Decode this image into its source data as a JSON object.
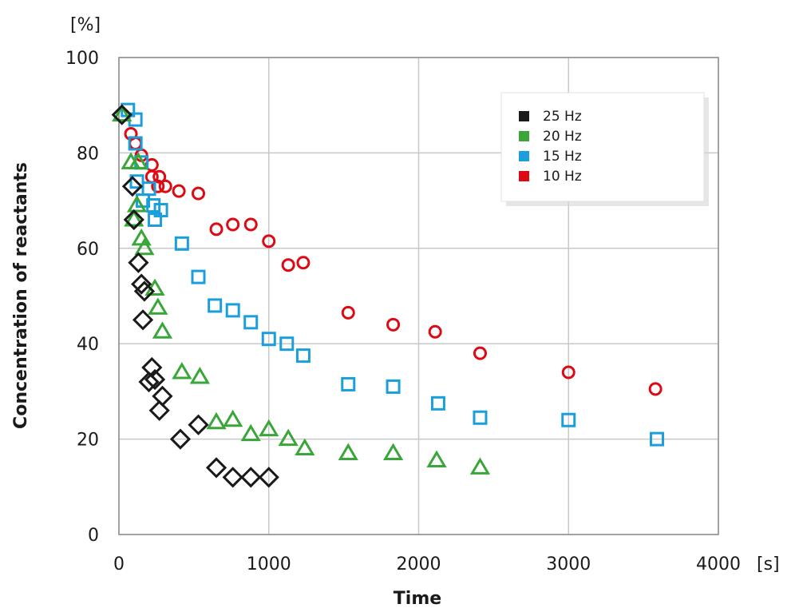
{
  "chart_data": {
    "type": "scatter",
    "xlabel": "Time",
    "ylabel": "Concentration of reactants",
    "x_unit": "[s]",
    "y_unit": "[%]",
    "xlim": [
      0,
      4000
    ],
    "ylim": [
      0,
      100
    ],
    "x_ticks": [
      "0",
      "1000",
      "2000",
      "3000",
      "4000"
    ],
    "y_ticks": [
      "0",
      "20",
      "40",
      "60",
      "80",
      "100"
    ],
    "grid": true,
    "legend_position": "top-right",
    "series": [
      {
        "name": "25 Hz",
        "color": "#1a1a1a",
        "marker": "diamond",
        "points": [
          [
            20,
            88
          ],
          [
            90,
            73
          ],
          [
            100,
            66
          ],
          [
            130,
            57
          ],
          [
            150,
            52.5
          ],
          [
            170,
            51
          ],
          [
            160,
            45
          ],
          [
            200,
            32
          ],
          [
            220,
            35
          ],
          [
            240,
            32.5
          ],
          [
            270,
            26
          ],
          [
            290,
            29
          ],
          [
            410,
            20
          ],
          [
            530,
            23
          ],
          [
            650,
            14
          ],
          [
            760,
            12
          ],
          [
            880,
            12
          ],
          [
            1000,
            12
          ]
        ]
      },
      {
        "name": "20 Hz",
        "color": "#3aa63a",
        "marker": "triangle",
        "points": [
          [
            20,
            88
          ],
          [
            80,
            78
          ],
          [
            100,
            66
          ],
          [
            120,
            69
          ],
          [
            130,
            78
          ],
          [
            150,
            62
          ],
          [
            170,
            60
          ],
          [
            240,
            51.5
          ],
          [
            260,
            47.5
          ],
          [
            290,
            42.5
          ],
          [
            420,
            34
          ],
          [
            540,
            33
          ],
          [
            650,
            23.5
          ],
          [
            760,
            24
          ],
          [
            880,
            21
          ],
          [
            1000,
            22
          ],
          [
            1130,
            20
          ],
          [
            1240,
            18
          ],
          [
            1530,
            17
          ],
          [
            1830,
            17
          ],
          [
            2120,
            15.5
          ],
          [
            2410,
            14
          ]
        ]
      },
      {
        "name": "15 Hz",
        "color": "#1a9fdb",
        "marker": "square",
        "points": [
          [
            60,
            89
          ],
          [
            110,
            87
          ],
          [
            110,
            82
          ],
          [
            120,
            74
          ],
          [
            150,
            78
          ],
          [
            160,
            70
          ],
          [
            200,
            72.5
          ],
          [
            230,
            69
          ],
          [
            240,
            66
          ],
          [
            280,
            68
          ],
          [
            420,
            61
          ],
          [
            530,
            54
          ],
          [
            640,
            48
          ],
          [
            760,
            47
          ],
          [
            880,
            44.5
          ],
          [
            1000,
            41
          ],
          [
            1120,
            40
          ],
          [
            1230,
            37.5
          ],
          [
            1530,
            31.5
          ],
          [
            1830,
            31
          ],
          [
            2130,
            27.5
          ],
          [
            2410,
            24.5
          ],
          [
            3000,
            24
          ],
          [
            3590,
            20
          ]
        ]
      },
      {
        "name": "10 Hz",
        "color": "#dd0a14",
        "marker": "circle",
        "points": [
          [
            80,
            84
          ],
          [
            110,
            82
          ],
          [
            150,
            79.5
          ],
          [
            220,
            77.5
          ],
          [
            220,
            75
          ],
          [
            270,
            75
          ],
          [
            260,
            73
          ],
          [
            310,
            73
          ],
          [
            400,
            72
          ],
          [
            530,
            71.5
          ],
          [
            650,
            64
          ],
          [
            760,
            65
          ],
          [
            880,
            65
          ],
          [
            1000,
            61.5
          ],
          [
            1130,
            56.5
          ],
          [
            1230,
            57
          ],
          [
            1530,
            46.5
          ],
          [
            1830,
            44
          ],
          [
            2110,
            42.5
          ],
          [
            2410,
            38
          ],
          [
            3000,
            34
          ],
          [
            3580,
            30.5
          ]
        ]
      }
    ]
  }
}
